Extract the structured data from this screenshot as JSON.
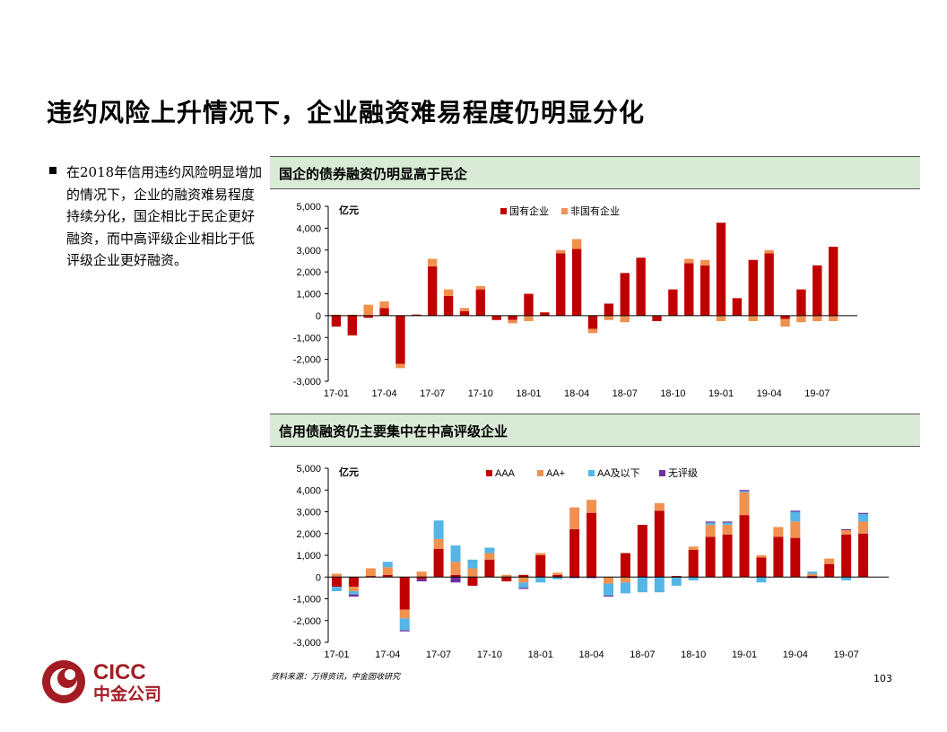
{
  "slide": {
    "title": "违约风险上升情况下，企业融资难易程度仍明显分化",
    "bullet": "在2018年信用违约风险明显增加的情况下，企业的融资难易程度持续分化，国企相比于民企更好融资，而中高评级企业相比于低评级企业更好融资。",
    "source": "资料来源：万得资讯，中金固收研究",
    "page_number": "103",
    "logo": {
      "text_en": "CICC",
      "text_cn": "中金公司",
      "color": "#a31c23"
    }
  },
  "colors": {
    "header_bg": "#d9ebd6",
    "red": "#c00000",
    "orange": "#f0914f",
    "blue": "#55b5e6",
    "purple": "#7030a0"
  },
  "chart_data": [
    {
      "type": "bar",
      "stacked": true,
      "title": "国企的债券融资仍明显高于民企",
      "unit_label": "亿元",
      "ylim": [
        -3000,
        5000
      ],
      "yticks": [
        "5,000",
        "4,000",
        "3,000",
        "2,000",
        "1,000",
        "0",
        "-1,000",
        "-2,000",
        "-3,000"
      ],
      "xtick_labels": [
        "17-01",
        "17-04",
        "17-07",
        "17-10",
        "18-01",
        "18-04",
        "18-07",
        "18-10",
        "19-01",
        "19-04",
        "19-07"
      ],
      "categories": [
        "17-01",
        "17-02",
        "17-03",
        "17-04",
        "17-05",
        "17-06",
        "17-07",
        "17-08",
        "17-09",
        "17-10",
        "17-11",
        "17-12",
        "18-01",
        "18-02",
        "18-03",
        "18-04",
        "18-05",
        "18-06",
        "18-07",
        "18-08",
        "18-09",
        "18-10",
        "18-11",
        "18-12",
        "19-01",
        "19-02",
        "19-03",
        "19-04",
        "19-05",
        "19-06",
        "19-07",
        "19-08",
        "19-09"
      ],
      "legend_position": "top",
      "series": [
        {
          "name": "国有企业",
          "color": "#c00000",
          "values": [
            -500,
            -900,
            -100,
            350,
            -2200,
            50,
            2250,
            900,
            200,
            1200,
            -200,
            -200,
            1000,
            150,
            2850,
            3050,
            -600,
            550,
            1950,
            2650,
            -250,
            1200,
            2400,
            2300,
            4250,
            800,
            2550,
            2850,
            -150,
            1200,
            2300,
            3150,
            0
          ]
        },
        {
          "name": "非国有企业",
          "color": "#f0914f",
          "values": [
            50,
            50,
            500,
            300,
            -200,
            0,
            350,
            300,
            150,
            150,
            0,
            -150,
            -250,
            0,
            150,
            450,
            -200,
            -200,
            -300,
            0,
            0,
            0,
            200,
            250,
            -250,
            0,
            -250,
            150,
            -350,
            -300,
            -250,
            -250,
            0
          ]
        }
      ]
    },
    {
      "type": "bar",
      "stacked": true,
      "title": "信用债融资仍主要集中在中高评级企业",
      "unit_label": "亿元",
      "ylim": [
        -3000,
        5000
      ],
      "yticks": [
        "5,000",
        "4,000",
        "3,000",
        "2,000",
        "1,000",
        "0",
        "-1,000",
        "-2,000",
        "-3,000"
      ],
      "xtick_labels": [
        "17-01",
        "17-04",
        "17-07",
        "17-10",
        "18-01",
        "18-04",
        "18-07",
        "18-10",
        "19-01",
        "19-04",
        "19-07"
      ],
      "categories": [
        "17-01",
        "17-02",
        "17-03",
        "17-04",
        "17-05",
        "17-06",
        "17-07",
        "17-08",
        "17-09",
        "17-10",
        "17-11",
        "17-12",
        "18-01",
        "18-02",
        "18-03",
        "18-04",
        "18-05",
        "18-06",
        "18-07",
        "18-08",
        "18-09",
        "18-10",
        "18-11",
        "18-12",
        "19-01",
        "19-02",
        "19-03",
        "19-04",
        "19-05",
        "19-06",
        "19-07",
        "19-08",
        "19-09"
      ],
      "legend_position": "top",
      "series": [
        {
          "name": "AAA",
          "color": "#c00000",
          "values": [
            -450,
            -450,
            50,
            100,
            -1500,
            -100,
            1300,
            100,
            -400,
            800,
            -200,
            100,
            1000,
            100,
            2200,
            2950,
            0,
            1100,
            2400,
            3050,
            50,
            1250,
            1850,
            1950,
            2850,
            900,
            1850,
            1800,
            50,
            600,
            1950,
            2000,
            0
          ]
        },
        {
          "name": "AA+",
          "color": "#f0914f",
          "values": [
            150,
            -200,
            350,
            350,
            -400,
            250,
            450,
            600,
            400,
            300,
            100,
            -250,
            100,
            100,
            1000,
            600,
            -300,
            -250,
            0,
            350,
            0,
            150,
            550,
            450,
            1050,
            100,
            450,
            750,
            100,
            250,
            200,
            550,
            0
          ]
        },
        {
          "name": "AA及以下",
          "color": "#55b5e6",
          "values": [
            -200,
            -150,
            0,
            250,
            -550,
            0,
            850,
            750,
            400,
            250,
            0,
            -250,
            -250,
            -100,
            0,
            0,
            -550,
            -500,
            -700,
            -700,
            -400,
            -150,
            100,
            100,
            50,
            -250,
            0,
            450,
            100,
            0,
            -150,
            350,
            0
          ]
        },
        {
          "name": "无评级",
          "color": "#7030a0",
          "values": [
            0,
            -100,
            0,
            0,
            -50,
            -100,
            0,
            -250,
            0,
            0,
            0,
            -50,
            0,
            0,
            -50,
            -50,
            -50,
            0,
            0,
            0,
            0,
            0,
            50,
            50,
            50,
            0,
            0,
            50,
            -50,
            0,
            50,
            50,
            0
          ]
        }
      ]
    }
  ]
}
